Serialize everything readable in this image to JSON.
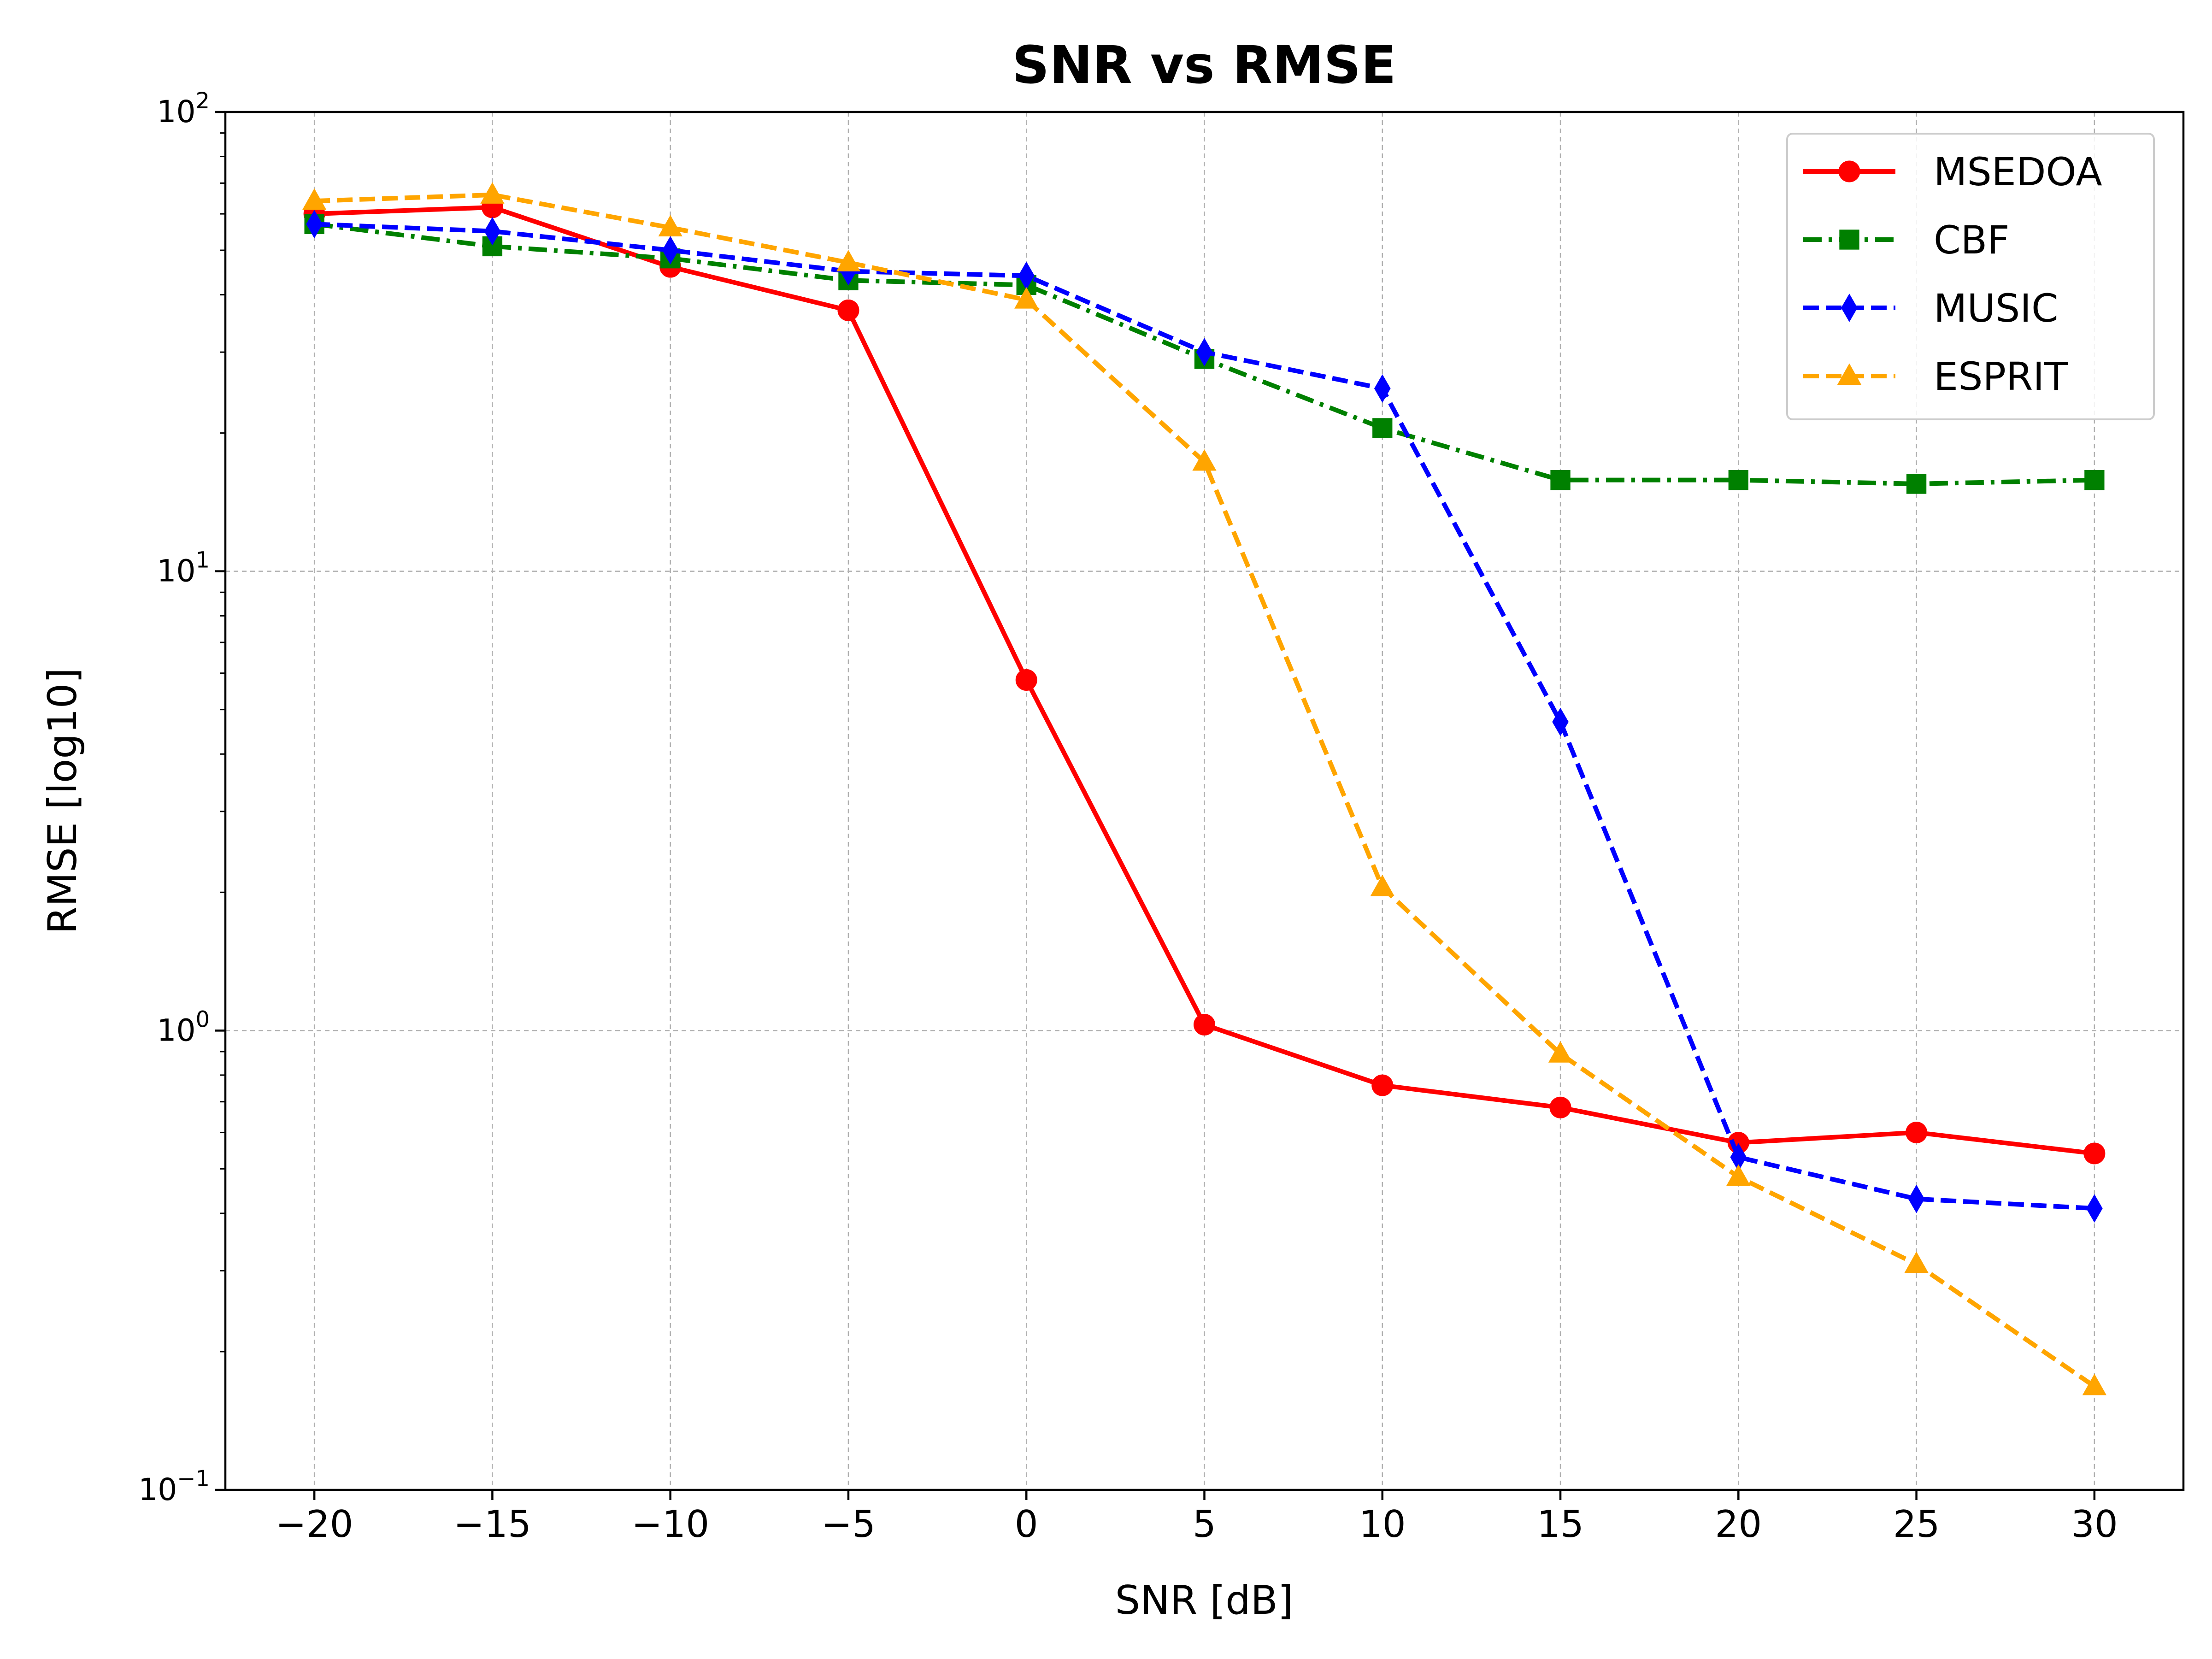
{
  "chart_data": {
    "type": "line",
    "title": "SNR vs RMSE",
    "xlabel": "SNR [dB]",
    "ylabel": "RMSE [log10]",
    "xlim": [
      -22.5,
      32.5
    ],
    "ylim": [
      0.1,
      100
    ],
    "yscale": "log",
    "grid": true,
    "legend_position": "top-right",
    "xticks": [
      -20,
      -15,
      -10,
      -5,
      0,
      5,
      10,
      15,
      20,
      25,
      30
    ],
    "xtick_labels": [
      "−20",
      "−15",
      "−10",
      "−5",
      "0",
      "5",
      "10",
      "15",
      "20",
      "25",
      "30"
    ],
    "yticks": [
      0.1,
      1,
      10,
      100
    ],
    "ytick_base": "10",
    "ytick_exponents": [
      "−1",
      "0",
      "1",
      "2"
    ],
    "x": [
      -20,
      -15,
      -10,
      -5,
      0,
      5,
      10,
      15,
      20,
      25,
      30
    ],
    "series": [
      {
        "name": "MSEDOA",
        "color": "#ff0000",
        "linestyle": "solid",
        "marker": "circle",
        "values": [
          60,
          62,
          46,
          37,
          5.8,
          1.03,
          0.76,
          0.68,
          0.57,
          0.6,
          0.54
        ]
      },
      {
        "name": "CBF",
        "color": "#008000",
        "linestyle": "dashdot",
        "marker": "square",
        "values": [
          57,
          51,
          48,
          43,
          42,
          29,
          20.5,
          15.8,
          15.8,
          15.5,
          15.8
        ]
      },
      {
        "name": "MUSIC",
        "color": "#0000ff",
        "linestyle": "dashed",
        "marker": "thin-diamond",
        "values": [
          57,
          55,
          50,
          45,
          44,
          30,
          25,
          4.7,
          0.53,
          0.43,
          0.41
        ]
      },
      {
        "name": "ESPRIT",
        "color": "#ffa500",
        "linestyle": "dashed",
        "marker": "triangle",
        "values": [
          64,
          66,
          56,
          47,
          39,
          17.3,
          2.05,
          0.89,
          0.48,
          0.31,
          0.168
        ]
      }
    ]
  }
}
